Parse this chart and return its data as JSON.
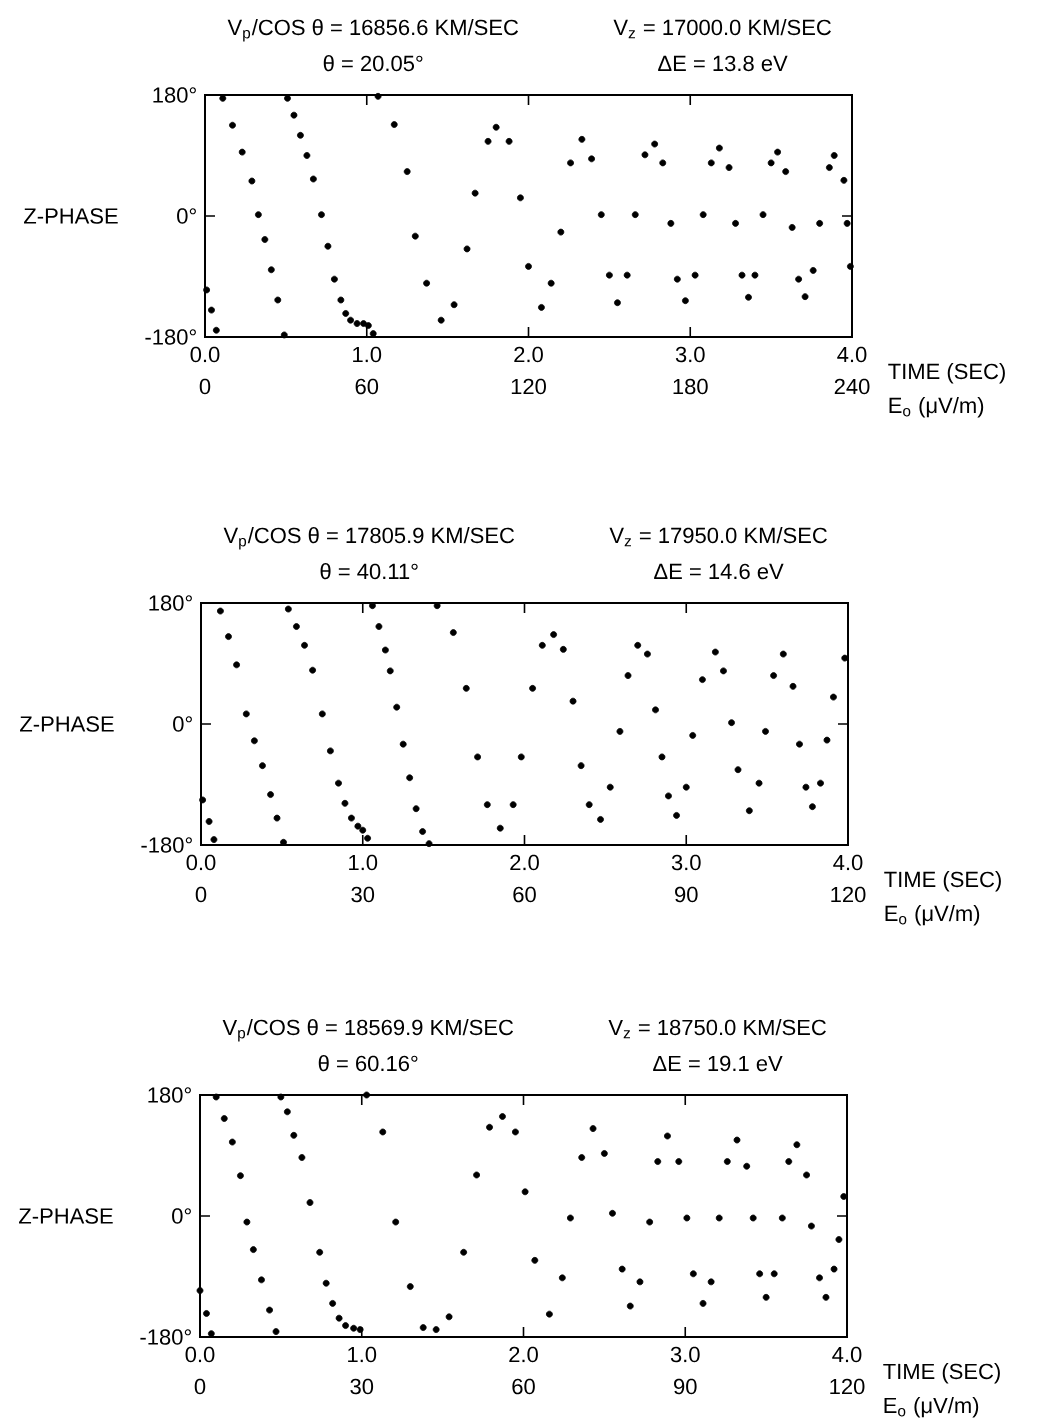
{
  "chart_data": [
    {
      "type": "scatter",
      "title": "V$_{p}$/COS θ = 16856.6 KM/SEC",
      "subtitle": "θ = 20.05°",
      "annotations": [
        "V$_{z}$ = 17000.0 KM/SEC",
        "ΔE = 13.8 eV"
      ],
      "ylabel": "Z-PHASE",
      "xlabel": "TIME (SEC)",
      "x2label": "E$_{o}$ (μV/m)",
      "color": "#000000",
      "xlim": [
        0,
        4
      ],
      "xticks": [
        {
          "value": 0,
          "label": "0.0"
        },
        {
          "value": 1,
          "label": "1.0"
        },
        {
          "value": 2,
          "label": "2.0"
        },
        {
          "value": 3,
          "label": "3.0"
        },
        {
          "value": 4,
          "label": "4.0"
        }
      ],
      "ylim": [
        -180,
        180
      ],
      "yticks": [
        {
          "value": -180,
          "label": "-180°"
        },
        {
          "value": 0,
          "label": "0°"
        },
        {
          "value": 180,
          "label": "180°"
        }
      ],
      "x2lim": [
        0,
        240
      ],
      "x2ticks": [
        0,
        60,
        120,
        180,
        240
      ],
      "x": [
        0.01,
        0.04,
        0.07,
        0.11,
        0.17,
        0.23,
        0.29,
        0.33,
        0.37,
        0.41,
        0.45,
        0.49,
        0.51,
        0.55,
        0.59,
        0.63,
        0.67,
        0.72,
        0.76,
        0.8,
        0.84,
        0.87,
        0.9,
        0.94,
        0.98,
        1.01,
        1.04,
        1.07,
        1.17,
        1.25,
        1.3,
        1.37,
        1.46,
        1.54,
        1.62,
        1.67,
        1.75,
        1.8,
        1.88,
        1.95,
        2.0,
        2.08,
        2.14,
        2.2,
        2.26,
        2.33,
        2.39,
        2.45,
        2.5,
        2.55,
        2.61,
        2.66,
        2.72,
        2.78,
        2.83,
        2.88,
        2.92,
        2.97,
        3.03,
        3.08,
        3.13,
        3.18,
        3.24,
        3.28,
        3.32,
        3.36,
        3.4,
        3.45,
        3.5,
        3.54,
        3.59,
        3.63,
        3.67,
        3.71,
        3.76,
        3.8,
        3.86,
        3.89,
        3.95,
        3.97,
        3.99
      ],
      "values": [
        -110,
        -140,
        -170,
        175,
        135,
        95,
        52,
        2,
        -35,
        -80,
        -125,
        -177,
        175,
        150,
        120,
        90,
        55,
        2,
        -45,
        -94,
        -125,
        -145,
        -155,
        -160,
        -160,
        -163,
        -175,
        178,
        136,
        66,
        -30,
        -100,
        -155,
        -132,
        -49,
        34,
        111,
        132,
        111,
        27,
        -75,
        -136,
        -100,
        -24,
        79,
        114,
        85,
        2,
        -88,
        -129,
        -88,
        2,
        91,
        107,
        79,
        -11,
        -94,
        -126,
        -88,
        2,
        79,
        101,
        72,
        -11,
        -88,
        -121,
        -88,
        2,
        79,
        95,
        66,
        -17,
        -94,
        -120,
        -81,
        -11,
        72,
        90,
        53,
        -11,
        -75
      ]
    },
    {
      "type": "scatter",
      "title": "V$_{p}$/COS θ = 17805.9 KM/SEC",
      "subtitle": "θ = 40.11°",
      "annotations": [
        "V$_{z}$ = 17950.0 KM/SEC",
        "ΔE = 14.6 eV"
      ],
      "ylabel": "Z-PHASE",
      "xlabel": "TIME (SEC)",
      "x2label": "E$_{o}$ (μV/m)",
      "color": "#000000",
      "xlim": [
        0,
        4
      ],
      "xticks": [
        {
          "value": 0,
          "label": "0.0"
        },
        {
          "value": 1,
          "label": "1.0"
        },
        {
          "value": 2,
          "label": "2.0"
        },
        {
          "value": 3,
          "label": "3.0"
        },
        {
          "value": 4,
          "label": "4.0"
        }
      ],
      "ylim": [
        -180,
        180
      ],
      "yticks": [
        {
          "value": -180,
          "label": "-180°"
        },
        {
          "value": 0,
          "label": "0°"
        },
        {
          "value": 180,
          "label": "180°"
        }
      ],
      "x2lim": [
        0,
        120
      ],
      "x2ticks": [
        0,
        30,
        60,
        90,
        120
      ],
      "x": [
        0.01,
        0.05,
        0.08,
        0.12,
        0.17,
        0.22,
        0.28,
        0.33,
        0.38,
        0.43,
        0.47,
        0.51,
        0.54,
        0.59,
        0.64,
        0.69,
        0.75,
        0.8,
        0.85,
        0.89,
        0.93,
        0.97,
        1.0,
        1.03,
        1.06,
        1.1,
        1.14,
        1.17,
        1.21,
        1.25,
        1.29,
        1.33,
        1.37,
        1.41,
        1.46,
        1.56,
        1.64,
        1.71,
        1.77,
        1.85,
        1.93,
        1.98,
        2.05,
        2.11,
        2.18,
        2.24,
        2.3,
        2.35,
        2.4,
        2.47,
        2.53,
        2.59,
        2.64,
        2.7,
        2.76,
        2.81,
        2.85,
        2.89,
        2.94,
        3.0,
        3.04,
        3.1,
        3.18,
        3.23,
        3.28,
        3.32,
        3.39,
        3.45,
        3.49,
        3.54,
        3.6,
        3.66,
        3.7,
        3.74,
        3.78,
        3.83,
        3.87,
        3.91,
        3.98
      ],
      "values": [
        -113,
        -145,
        -172,
        168,
        130,
        88,
        15,
        -25,
        -62,
        -105,
        -140,
        -176,
        171,
        145,
        117,
        80,
        15,
        -40,
        -88,
        -118,
        -140,
        -152,
        -158,
        -170,
        176,
        145,
        110,
        79,
        25,
        -30,
        -80,
        -126,
        -160,
        -178,
        176,
        136,
        53,
        -49,
        -120,
        -155,
        -120,
        -49,
        53,
        117,
        133,
        111,
        34,
        -62,
        -120,
        -142,
        -94,
        -11,
        72,
        117,
        104,
        21,
        -49,
        -107,
        -136,
        -94,
        -17,
        66,
        107,
        79,
        2,
        -68,
        -129,
        -88,
        -11,
        72,
        104,
        56,
        -30,
        -94,
        -123,
        -88,
        -24,
        40,
        98
      ]
    },
    {
      "type": "scatter",
      "title": "V$_{p}$/COS θ = 18569.9 KM/SEC",
      "subtitle": "θ = 60.16°",
      "annotations": [
        "V$_{z}$ = 18750.0 KM/SEC",
        "ΔE = 19.1 eV"
      ],
      "ylabel": "Z-PHASE",
      "xlabel": "TIME (SEC)",
      "x2label": "E$_{o}$ (μV/m)",
      "color": "#000000",
      "xlim": [
        0,
        4
      ],
      "xticks": [
        {
          "value": 0,
          "label": "0.0"
        },
        {
          "value": 1,
          "label": "1.0"
        },
        {
          "value": 2,
          "label": "2.0"
        },
        {
          "value": 3,
          "label": "3.0"
        },
        {
          "value": 4,
          "label": "4.0"
        }
      ],
      "ylim": [
        -180,
        180
      ],
      "yticks": [
        {
          "value": -180,
          "label": "-180°"
        },
        {
          "value": 0,
          "label": "0°"
        },
        {
          "value": 180,
          "label": "180°"
        }
      ],
      "x2lim": [
        0,
        120
      ],
      "x2ticks": [
        0,
        30,
        60,
        90,
        120
      ],
      "x": [
        0.0,
        0.04,
        0.07,
        0.1,
        0.15,
        0.2,
        0.25,
        0.29,
        0.33,
        0.38,
        0.43,
        0.47,
        0.5,
        0.54,
        0.58,
        0.63,
        0.68,
        0.74,
        0.78,
        0.82,
        0.86,
        0.9,
        0.95,
        0.99,
        1.03,
        1.13,
        1.21,
        1.3,
        1.38,
        1.46,
        1.54,
        1.63,
        1.71,
        1.79,
        1.87,
        1.95,
        2.01,
        2.07,
        2.16,
        2.24,
        2.29,
        2.36,
        2.43,
        2.5,
        2.55,
        2.61,
        2.66,
        2.72,
        2.78,
        2.83,
        2.89,
        2.96,
        3.01,
        3.05,
        3.11,
        3.16,
        3.21,
        3.26,
        3.32,
        3.38,
        3.42,
        3.46,
        3.5,
        3.55,
        3.6,
        3.64,
        3.69,
        3.75,
        3.78,
        3.83,
        3.87,
        3.92,
        3.95,
        3.98
      ],
      "values": [
        -111,
        -145,
        -175,
        177,
        145,
        110,
        60,
        -9,
        -50,
        -95,
        -140,
        -172,
        177,
        155,
        120,
        87,
        20,
        -54,
        -100,
        -130,
        -152,
        -163,
        -167,
        -169,
        180,
        125,
        -9,
        -105,
        -166,
        -169,
        -150,
        -54,
        61,
        132,
        148,
        125,
        36,
        -66,
        -146,
        -92,
        -3,
        87,
        130,
        93,
        4,
        -79,
        -134,
        -98,
        -9,
        81,
        119,
        81,
        -3,
        -86,
        -130,
        -98,
        -3,
        81,
        113,
        74,
        -3,
        -86,
        -121,
        -86,
        -3,
        81,
        106,
        61,
        -15,
        -92,
        -121,
        -79,
        -35,
        29
      ]
    }
  ]
}
